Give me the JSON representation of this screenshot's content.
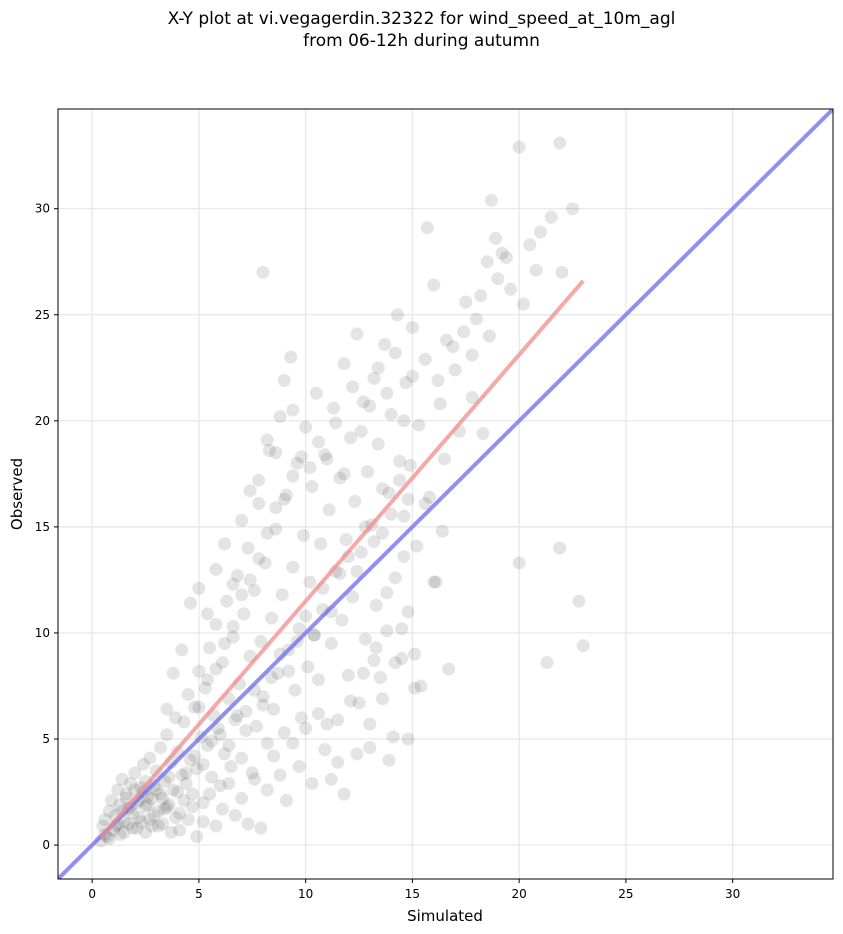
{
  "chart_data": {
    "type": "scatter",
    "title": "X-Y plot at vi.vegagerdin.32322 for wind_speed_at_10m_agl",
    "subtitle": "from 06-12h during autumn",
    "xlabel": "Simulated",
    "ylabel": "Observed",
    "xlim": [
      -1.6,
      34.7
    ],
    "ylim": [
      -1.6,
      34.7
    ],
    "xticks": [
      0,
      5,
      10,
      15,
      20,
      25,
      30
    ],
    "yticks": [
      0,
      5,
      10,
      15,
      20,
      25,
      30
    ],
    "grid": true,
    "point_color": "#303030",
    "reference_lines": [
      {
        "label": "1:1",
        "color": "#6b6bef",
        "x": [
          -1.6,
          34.7
        ],
        "y": [
          -1.6,
          34.7
        ]
      },
      {
        "label": "fit",
        "color": "#f08c8c",
        "x": [
          0.4,
          23.0
        ],
        "y": [
          0.35,
          26.6
        ]
      }
    ],
    "points": [
      [
        0.5,
        0.9
      ],
      [
        0.6,
        1.2
      ],
      [
        0.7,
        0.4
      ],
      [
        0.8,
        1.6
      ],
      [
        0.9,
        2.1
      ],
      [
        1.0,
        0.7
      ],
      [
        1.1,
        1.4
      ],
      [
        1.2,
        2.6
      ],
      [
        1.3,
        1.9
      ],
      [
        1.4,
        3.1
      ],
      [
        1.5,
        1.1
      ],
      [
        1.6,
        2.4
      ],
      [
        1.7,
        1.7
      ],
      [
        1.8,
        2.9
      ],
      [
        1.9,
        0.8
      ],
      [
        2.0,
        3.4
      ],
      [
        2.1,
        2.0
      ],
      [
        2.2,
        1.3
      ],
      [
        2.3,
        2.7
      ],
      [
        2.4,
        3.8
      ],
      [
        2.5,
        1.8
      ],
      [
        2.6,
        2.3
      ],
      [
        2.7,
        4.1
      ],
      [
        2.8,
        0.9
      ],
      [
        2.9,
        2.8
      ],
      [
        3.0,
        3.5
      ],
      [
        3.1,
        1.6
      ],
      [
        3.2,
        4.6
      ],
      [
        3.3,
        2.2
      ],
      [
        3.4,
        3.0
      ],
      [
        3.5,
        5.2
      ],
      [
        3.6,
        1.9
      ],
      [
        3.7,
        3.9
      ],
      [
        3.8,
        2.6
      ],
      [
        3.9,
        6.0
      ],
      [
        4.0,
        4.4
      ],
      [
        4.1,
        1.5
      ],
      [
        4.2,
        3.3
      ],
      [
        4.3,
        5.8
      ],
      [
        4.4,
        2.9
      ],
      [
        4.5,
        7.1
      ],
      [
        4.6,
        4.0
      ],
      [
        4.7,
        2.4
      ],
      [
        4.8,
        6.5
      ],
      [
        4.9,
        3.6
      ],
      [
        5.0,
        8.2
      ],
      [
        5.1,
        5.1
      ],
      [
        5.2,
        2.0
      ],
      [
        5.3,
        7.4
      ],
      [
        5.4,
        4.7
      ],
      [
        5.5,
        9.3
      ],
      [
        5.6,
        3.2
      ],
      [
        5.7,
        6.1
      ],
      [
        5.8,
        10.4
      ],
      [
        5.9,
        5.5
      ],
      [
        6.0,
        2.8
      ],
      [
        6.1,
        8.6
      ],
      [
        6.2,
        4.3
      ],
      [
        6.3,
        11.5
      ],
      [
        6.4,
        6.9
      ],
      [
        6.5,
        3.7
      ],
      [
        6.6,
        9.8
      ],
      [
        6.7,
        5.9
      ],
      [
        6.8,
        12.7
      ],
      [
        6.9,
        7.6
      ],
      [
        7.0,
        4.1
      ],
      [
        7.1,
        10.9
      ],
      [
        7.2,
        6.3
      ],
      [
        7.3,
        14.0
      ],
      [
        7.4,
        8.9
      ],
      [
        7.5,
        3.4
      ],
      [
        7.6,
        12.0
      ],
      [
        7.7,
        5.6
      ],
      [
        7.8,
        16.1
      ],
      [
        7.9,
        9.6
      ],
      [
        8.0,
        7.0
      ],
      [
        8.1,
        13.3
      ],
      [
        8.2,
        4.8
      ],
      [
        8.3,
        18.6
      ],
      [
        8.4,
        10.7
      ],
      [
        8.5,
        6.4
      ],
      [
        8.6,
        14.9
      ],
      [
        8.7,
        8.1
      ],
      [
        8.8,
        20.2
      ],
      [
        8.9,
        11.8
      ],
      [
        9.0,
        5.3
      ],
      [
        9.1,
        16.5
      ],
      [
        9.2,
        9.2
      ],
      [
        9.3,
        23.0
      ],
      [
        9.4,
        13.1
      ],
      [
        9.5,
        7.3
      ],
      [
        9.6,
        18.0
      ],
      [
        9.7,
        10.2
      ],
      [
        9.8,
        6.0
      ],
      [
        9.9,
        14.6
      ],
      [
        10.0,
        19.7
      ],
      [
        10.1,
        8.4
      ],
      [
        10.2,
        12.4
      ],
      [
        10.3,
        16.9
      ],
      [
        10.4,
        9.9
      ],
      [
        10.5,
        21.3
      ],
      [
        10.6,
        7.8
      ],
      [
        10.7,
        14.2
      ],
      [
        10.8,
        11.1
      ],
      [
        10.9,
        18.4
      ],
      [
        11.0,
        5.7
      ],
      [
        11.1,
        15.8
      ],
      [
        11.2,
        9.5
      ],
      [
        11.3,
        20.6
      ],
      [
        11.4,
        12.9
      ],
      [
        11.5,
        3.9
      ],
      [
        11.6,
        17.3
      ],
      [
        11.7,
        10.6
      ],
      [
        11.8,
        22.7
      ],
      [
        11.9,
        14.4
      ],
      [
        12.0,
        8.0
      ],
      [
        12.1,
        19.2
      ],
      [
        12.2,
        11.7
      ],
      [
        12.3,
        16.2
      ],
      [
        12.4,
        24.1
      ],
      [
        12.5,
        6.7
      ],
      [
        12.6,
        13.8
      ],
      [
        12.7,
        20.9
      ],
      [
        12.8,
        9.7
      ],
      [
        12.9,
        17.6
      ],
      [
        13.0,
        4.6
      ],
      [
        13.1,
        15.1
      ],
      [
        13.2,
        22.0
      ],
      [
        13.3,
        11.3
      ],
      [
        13.4,
        18.9
      ],
      [
        13.5,
        7.9
      ],
      [
        13.6,
        14.7
      ],
      [
        13.7,
        23.6
      ],
      [
        13.8,
        10.1
      ],
      [
        13.9,
        16.6
      ],
      [
        14.0,
        20.3
      ],
      [
        14.1,
        5.1
      ],
      [
        14.2,
        12.6
      ],
      [
        14.3,
        25.0
      ],
      [
        14.4,
        18.1
      ],
      [
        14.5,
        8.8
      ],
      [
        14.6,
        15.5
      ],
      [
        14.7,
        21.8
      ],
      [
        14.8,
        11.0
      ],
      [
        14.9,
        17.9
      ],
      [
        15.0,
        24.4
      ],
      [
        15.1,
        9.0
      ],
      [
        15.2,
        14.1
      ],
      [
        15.3,
        19.8
      ],
      [
        15.4,
        7.5
      ],
      [
        15.6,
        22.9
      ],
      [
        15.8,
        16.4
      ],
      [
        16.0,
        26.4
      ],
      [
        16.1,
        12.4
      ],
      [
        16.3,
        20.8
      ],
      [
        16.5,
        18.2
      ],
      [
        16.7,
        8.3
      ],
      [
        16.9,
        23.5
      ],
      [
        17.2,
        19.5
      ],
      [
        17.5,
        25.6
      ],
      [
        17.8,
        21.1
      ],
      [
        18.0,
        24.8
      ],
      [
        18.3,
        19.4
      ],
      [
        18.5,
        27.5
      ],
      [
        18.7,
        30.4
      ],
      [
        18.9,
        28.6
      ],
      [
        19.2,
        27.9
      ],
      [
        19.6,
        26.2
      ],
      [
        20.0,
        32.9
      ],
      [
        20.2,
        25.5
      ],
      [
        20.5,
        28.3
      ],
      [
        20.8,
        27.1
      ],
      [
        21.0,
        28.9
      ],
      [
        21.5,
        29.6
      ],
      [
        21.9,
        33.1
      ],
      [
        22.0,
        27.0
      ],
      [
        22.5,
        30.0
      ],
      [
        20.0,
        13.3
      ],
      [
        21.9,
        14.0
      ],
      [
        21.3,
        8.6
      ],
      [
        22.8,
        11.5
      ],
      [
        23.0,
        9.4
      ],
      [
        15.7,
        29.1
      ],
      [
        8.0,
        27.0
      ],
      [
        0.4,
        0.2
      ],
      [
        0.6,
        0.5
      ],
      [
        0.8,
        0.3
      ],
      [
        1.1,
        0.9
      ],
      [
        1.3,
        0.5
      ],
      [
        1.5,
        0.6
      ],
      [
        1.7,
        1.0
      ],
      [
        1.9,
        1.5
      ],
      [
        2.1,
        0.8
      ],
      [
        2.3,
        1.1
      ],
      [
        2.5,
        0.6
      ],
      [
        2.7,
        1.2
      ],
      [
        2.9,
        1.4
      ],
      [
        3.1,
        0.9
      ],
      [
        3.3,
        1.0
      ],
      [
        3.5,
        1.8
      ],
      [
        3.7,
        0.6
      ],
      [
        3.9,
        1.3
      ],
      [
        4.1,
        0.7
      ],
      [
        4.3,
        2.1
      ],
      [
        4.5,
        1.2
      ],
      [
        4.7,
        1.8
      ],
      [
        4.9,
        0.4
      ],
      [
        5.2,
        1.1
      ],
      [
        5.5,
        2.4
      ],
      [
        5.8,
        0.9
      ],
      [
        6.1,
        1.7
      ],
      [
        6.4,
        2.9
      ],
      [
        6.7,
        1.4
      ],
      [
        7.0,
        2.2
      ],
      [
        7.3,
        1.0
      ],
      [
        7.6,
        3.1
      ],
      [
        7.9,
        0.8
      ],
      [
        8.2,
        2.6
      ],
      [
        8.5,
        4.2
      ],
      [
        8.8,
        3.3
      ],
      [
        9.1,
        2.1
      ],
      [
        9.4,
        4.8
      ],
      [
        9.7,
        3.7
      ],
      [
        10.0,
        5.5
      ],
      [
        10.3,
        2.9
      ],
      [
        10.6,
        6.2
      ],
      [
        10.9,
        4.5
      ],
      [
        11.2,
        3.1
      ],
      [
        11.5,
        5.9
      ],
      [
        11.8,
        2.4
      ],
      [
        12.1,
        6.8
      ],
      [
        12.4,
        4.3
      ],
      [
        12.7,
        8.1
      ],
      [
        13.0,
        5.7
      ],
      [
        13.3,
        9.3
      ],
      [
        13.6,
        6.9
      ],
      [
        13.9,
        4.0
      ],
      [
        14.2,
        8.6
      ],
      [
        14.5,
        10.2
      ],
      [
        14.8,
        5.0
      ],
      [
        15.1,
        7.4
      ],
      [
        2.2,
        2.1
      ],
      [
        2.4,
        2.5
      ],
      [
        2.6,
        1.9
      ],
      [
        2.8,
        2.2
      ],
      [
        3.0,
        2.6
      ],
      [
        1.8,
        1.8
      ],
      [
        1.6,
        2.2
      ],
      [
        2.0,
        2.6
      ],
      [
        3.2,
        2.4
      ],
      [
        3.4,
        1.7
      ],
      [
        2.5,
        3.0
      ],
      [
        1.4,
        1.6
      ],
      [
        1.2,
        1.0
      ],
      [
        3.6,
        3.2
      ],
      [
        4.0,
        2.5
      ],
      [
        4.4,
        3.4
      ],
      [
        4.8,
        4.2
      ],
      [
        5.2,
        3.8
      ],
      [
        5.6,
        4.9
      ],
      [
        6.0,
        5.2
      ],
      [
        6.4,
        4.7
      ],
      [
        6.8,
        6.1
      ],
      [
        7.2,
        5.4
      ],
      [
        7.6,
        7.3
      ],
      [
        8.0,
        6.6
      ],
      [
        8.4,
        7.9
      ],
      [
        8.8,
        9.0
      ],
      [
        9.2,
        8.2
      ],
      [
        9.6,
        9.6
      ],
      [
        10.0,
        10.8
      ],
      [
        10.4,
        9.9
      ],
      [
        10.8,
        12.1
      ],
      [
        11.2,
        11.0
      ],
      [
        11.6,
        12.8
      ],
      [
        12.0,
        13.6
      ],
      [
        12.4,
        12.9
      ],
      [
        12.8,
        15.0
      ],
      [
        13.2,
        14.3
      ],
      [
        13.6,
        16.8
      ],
      [
        14.0,
        15.6
      ],
      [
        14.4,
        17.2
      ],
      [
        14.8,
        16.3
      ],
      [
        5.0,
        6.5
      ],
      [
        5.4,
        7.8
      ],
      [
        5.8,
        8.3
      ],
      [
        6.2,
        9.5
      ],
      [
        6.6,
        10.3
      ],
      [
        7.0,
        11.8
      ],
      [
        7.4,
        12.5
      ],
      [
        7.8,
        13.5
      ],
      [
        8.2,
        14.7
      ],
      [
        8.6,
        15.9
      ],
      [
        9.0,
        16.3
      ],
      [
        9.4,
        17.4
      ],
      [
        9.8,
        18.3
      ],
      [
        10.2,
        17.8
      ],
      [
        10.6,
        19.0
      ],
      [
        11.0,
        18.2
      ],
      [
        11.4,
        19.9
      ],
      [
        11.8,
        17.5
      ],
      [
        12.2,
        21.6
      ],
      [
        12.6,
        19.5
      ],
      [
        13.0,
        20.7
      ],
      [
        13.4,
        22.5
      ],
      [
        13.8,
        21.3
      ],
      [
        14.2,
        23.2
      ],
      [
        14.6,
        20.0
      ],
      [
        15.0,
        22.1
      ],
      [
        3.5,
        6.4
      ],
      [
        3.8,
        8.1
      ],
      [
        4.2,
        9.2
      ],
      [
        4.6,
        11.4
      ],
      [
        5.0,
        12.1
      ],
      [
        5.4,
        10.9
      ],
      [
        5.8,
        13.0
      ],
      [
        6.2,
        14.2
      ],
      [
        6.6,
        12.3
      ],
      [
        7.0,
        15.3
      ],
      [
        7.4,
        16.7
      ],
      [
        7.8,
        17.2
      ],
      [
        8.2,
        19.1
      ],
      [
        8.6,
        18.5
      ],
      [
        9.0,
        21.9
      ],
      [
        9.4,
        20.5
      ],
      [
        16.2,
        21.9
      ],
      [
        16.6,
        23.8
      ],
      [
        17.0,
        22.4
      ],
      [
        17.4,
        24.2
      ],
      [
        17.8,
        23.1
      ],
      [
        18.2,
        25.9
      ],
      [
        18.6,
        24.0
      ],
      [
        19.0,
        26.7
      ],
      [
        19.4,
        27.7
      ],
      [
        16.4,
        14.8
      ],
      [
        16.0,
        12.4
      ],
      [
        15.6,
        16.1
      ],
      [
        14.6,
        13.6
      ],
      [
        13.8,
        11.9
      ],
      [
        13.2,
        8.7
      ]
    ]
  }
}
